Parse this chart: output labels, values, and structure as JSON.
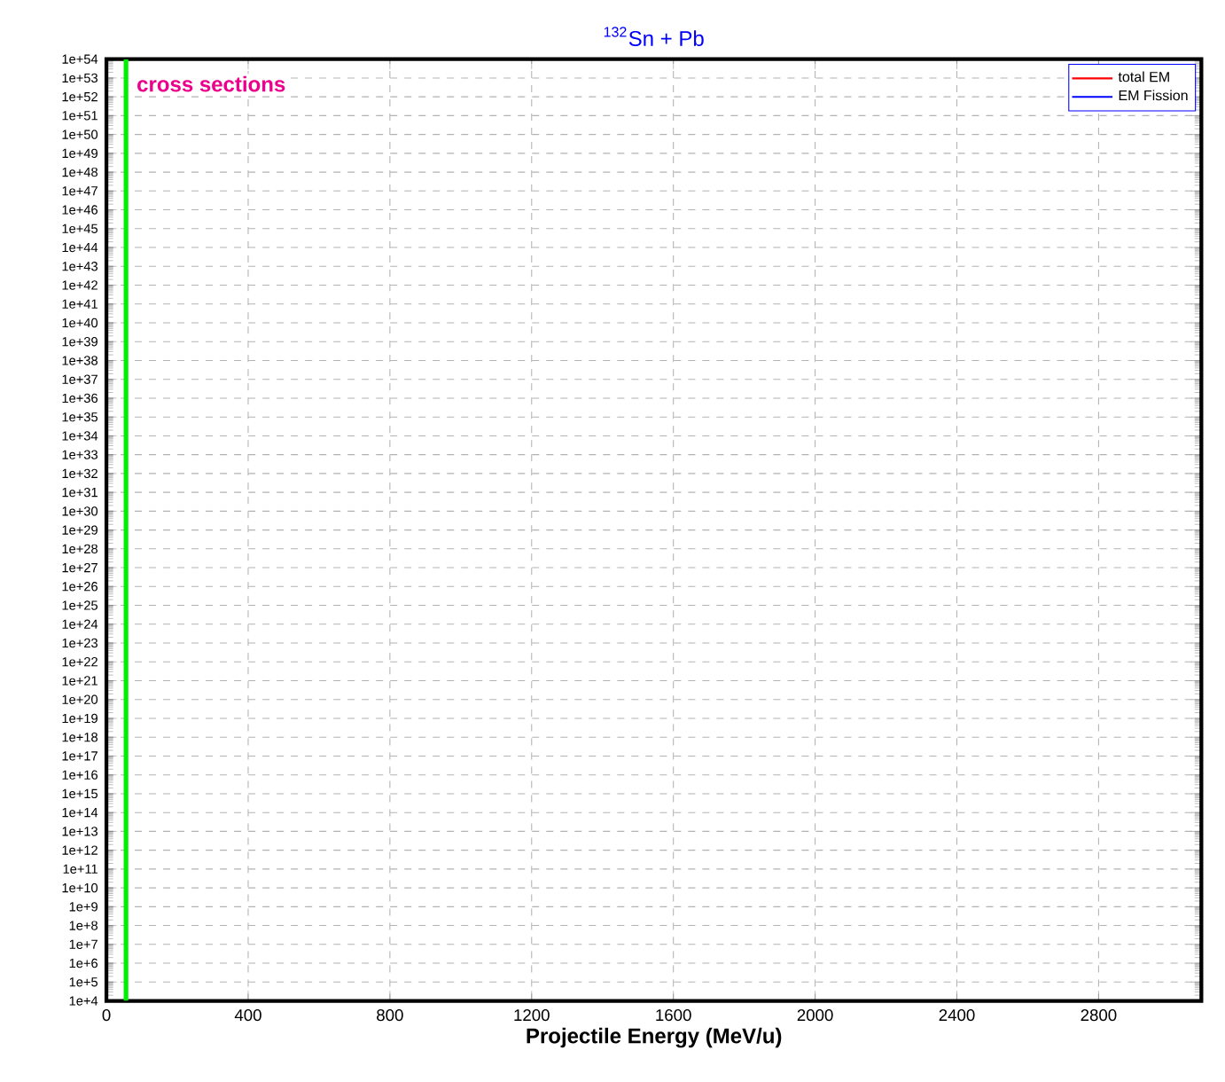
{
  "chart_data": {
    "type": "line",
    "title": "$^{132}$Sn + Pb",
    "xlabel": "Projectile Energy (MeV/u)",
    "annotations": [
      "cross sections"
    ],
    "log": "y",
    "grid": true,
    "legend": "top right",
    "xlim": [
      0,
      3090
    ],
    "xticks": [
      0,
      400,
      800,
      1200,
      1600,
      2000,
      2400,
      2800
    ],
    "ylim": [
      10000.0,
      1e+54
    ],
    "yticks": [
      {
        "value": 10000.0,
        "label": "1e+4"
      },
      {
        "value": 100000.0,
        "label": "1e+5"
      },
      {
        "value": 1000000.0,
        "label": "1e+6"
      },
      {
        "value": 10000000.0,
        "label": "1e+7"
      },
      {
        "value": 100000000.0,
        "label": "1e+8"
      },
      {
        "value": 1000000000.0,
        "label": "1e+9"
      },
      {
        "value": 10000000000.0,
        "label": "1e+10"
      },
      {
        "value": 100000000000.0,
        "label": "1e+11"
      },
      {
        "value": 1000000000000.0,
        "label": "1e+12"
      },
      {
        "value": 10000000000000.0,
        "label": "1e+13"
      },
      {
        "value": 100000000000000.0,
        "label": "1e+14"
      },
      {
        "value": 1000000000000000.0,
        "label": "1e+15"
      },
      {
        "value": 1e+16,
        "label": "1e+16"
      },
      {
        "value": 1e+17,
        "label": "1e+17"
      },
      {
        "value": 1e+18,
        "label": "1e+18"
      },
      {
        "value": 1e+19,
        "label": "1e+19"
      },
      {
        "value": 1e+20,
        "label": "1e+20"
      },
      {
        "value": 1e+21,
        "label": "1e+21"
      },
      {
        "value": 1e+22,
        "label": "1e+22"
      },
      {
        "value": 1e+23,
        "label": "1e+23"
      },
      {
        "value": 1e+24,
        "label": "1e+24"
      },
      {
        "value": 1e+25,
        "label": "1e+25"
      },
      {
        "value": 1e+26,
        "label": "1e+26"
      },
      {
        "value": 1e+27,
        "label": "1e+27"
      },
      {
        "value": 1e+28,
        "label": "1e+28"
      },
      {
        "value": 1e+29,
        "label": "1e+29"
      },
      {
        "value": 1e+30,
        "label": "1e+30"
      },
      {
        "value": 1e+31,
        "label": "1e+31"
      },
      {
        "value": 1e+32,
        "label": "1e+32"
      },
      {
        "value": 1e+33,
        "label": "1e+33"
      },
      {
        "value": 1e+34,
        "label": "1e+34"
      },
      {
        "value": 1e+35,
        "label": "1e+35"
      },
      {
        "value": 1e+36,
        "label": "1e+36"
      },
      {
        "value": 1e+37,
        "label": "1e+37"
      },
      {
        "value": 1e+38,
        "label": "1e+38"
      },
      {
        "value": 1e+39,
        "label": "1e+39"
      },
      {
        "value": 1e+40,
        "label": "1e+40"
      },
      {
        "value": 1e+41,
        "label": "1e+41"
      },
      {
        "value": 1e+42,
        "label": "1e+42"
      },
      {
        "value": 1e+43,
        "label": "1e+43"
      },
      {
        "value": 1e+44,
        "label": "1e+44"
      },
      {
        "value": 1e+45,
        "label": "1e+45"
      },
      {
        "value": 1e+46,
        "label": "1e+46"
      },
      {
        "value": 1e+47,
        "label": "1e+47"
      },
      {
        "value": 1e+48,
        "label": "1e+48"
      },
      {
        "value": 1e+49,
        "label": "1e+49"
      },
      {
        "value": 1e+50,
        "label": "1e+50"
      },
      {
        "value": 1e+51,
        "label": "1e+51"
      },
      {
        "value": 1e+52,
        "label": "1e+52"
      },
      {
        "value": 1e+53,
        "label": "1e+53"
      },
      {
        "value": 1e+54,
        "label": "1e+54"
      }
    ],
    "series": [
      {
        "color": "#00ee00",
        "x": [
          55,
          55
        ],
        "values": [
          10000.0,
          1e+54
        ]
      },
      {
        "name": "total EM",
        "color": "#ff0000"
      },
      {
        "name": "EM Fission",
        "color": "#0000ff"
      }
    ]
  }
}
